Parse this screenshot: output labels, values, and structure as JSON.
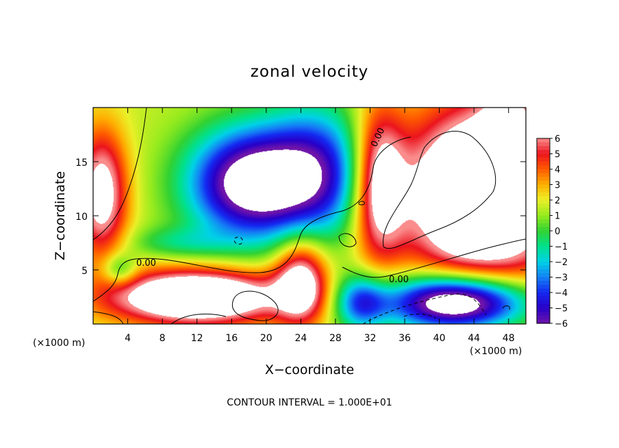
{
  "chart_data": {
    "type": "heatmap",
    "title": "zonal velocity",
    "xlabel": "X−coordinate",
    "ylabel": "Z−coordinate",
    "x_unit_label": "(×1000 m)",
    "z_unit_label": "(×1000 m)",
    "xlim": [
      0,
      50
    ],
    "ylim": [
      0,
      20
    ],
    "x_ticks": [
      "4",
      "8",
      "12",
      "16",
      "20",
      "24",
      "28",
      "32",
      "36",
      "40",
      "44",
      "48"
    ],
    "x_tick_values": [
      4,
      8,
      12,
      16,
      20,
      24,
      28,
      32,
      36,
      40,
      44,
      48
    ],
    "y_ticks": [
      "5",
      "10",
      "15"
    ],
    "y_tick_values": [
      5,
      10,
      15
    ],
    "colorbar": {
      "labels": [
        "6",
        "5",
        "4",
        "3",
        "2",
        "1",
        "0",
        "−1",
        "−2",
        "−3",
        "−4",
        "−5",
        "−6"
      ],
      "values": [
        6,
        5,
        4,
        3,
        2,
        1,
        0,
        -1,
        -2,
        -3,
        -4,
        -5,
        -6
      ],
      "range": [
        -6,
        6
      ]
    },
    "contour_labels": [
      "0.00",
      "0.00",
      "0.00"
    ],
    "footer": "CONTOUR INTERVAL = 1.000E+01",
    "out_of_range_color": "#ffffff",
    "grid": false,
    "legend": "colorbar on right"
  }
}
